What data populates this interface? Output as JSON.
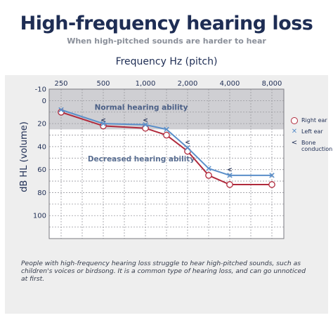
{
  "header": {
    "title": "High-frequency hearing loss",
    "subtitle": "When high-pitched sounds are harder to hear"
  },
  "caption": "People with high-frequency hearing loss struggle to hear high-pitched sounds, such as children's voices or birdsong. It is a common type of hearing loss, and can go unnoticed at first.",
  "legend": {
    "right_ear": "Right ear",
    "left_ear": "Left ear",
    "bone_conduction": "Bone conduction"
  },
  "colors": {
    "right_ear": "#b02a3c",
    "left_ear": "#5b8fc9",
    "normal_band": "#cfcfd3",
    "title": "#1e2d54"
  },
  "chart_data": {
    "type": "line",
    "title": "High-frequency hearing loss",
    "xlabel": "Frequency Hz (pitch)",
    "ylabel": "dB HL (volume)",
    "x_positions": [
      0,
      0.5,
      1,
      1.5,
      2,
      2.5,
      3,
      3.5,
      4,
      4.5,
      5
    ],
    "x_ticks": [
      {
        "pos": 0,
        "label": "250"
      },
      {
        "pos": 1,
        "label": "500"
      },
      {
        "pos": 2,
        "label": "1,000"
      },
      {
        "pos": 3,
        "label": "2,000"
      },
      {
        "pos": 4,
        "label": "4,000"
      },
      {
        "pos": 5,
        "label": "8,000"
      }
    ],
    "y_ticks": [
      -10,
      0,
      20,
      40,
      60,
      80,
      100
    ],
    "ylim": [
      -10,
      120
    ],
    "y_inverted": true,
    "grid": true,
    "normal_band": {
      "from": -10,
      "to": 25,
      "label": "Normal hearing ability"
    },
    "decreased_label": "Decreased hearing ability",
    "series": [
      {
        "name": "Right ear",
        "marker": "circle",
        "x": [
          0,
          1,
          2,
          2.5,
          3,
          3.5,
          4,
          5
        ],
        "values": [
          10,
          22,
          24,
          30,
          44,
          65,
          73,
          73
        ]
      },
      {
        "name": "Left ear",
        "marker": "x",
        "x": [
          0,
          1,
          2,
          2.5,
          3,
          3.5,
          4,
          5
        ],
        "values": [
          8,
          20,
          21,
          25,
          41,
          59,
          65,
          65
        ]
      },
      {
        "name": "Bone conduction",
        "marker": "chevron",
        "x": [
          1,
          2,
          3,
          4
        ],
        "values": [
          17,
          17,
          36,
          60
        ]
      }
    ],
    "legend_position": "right"
  }
}
